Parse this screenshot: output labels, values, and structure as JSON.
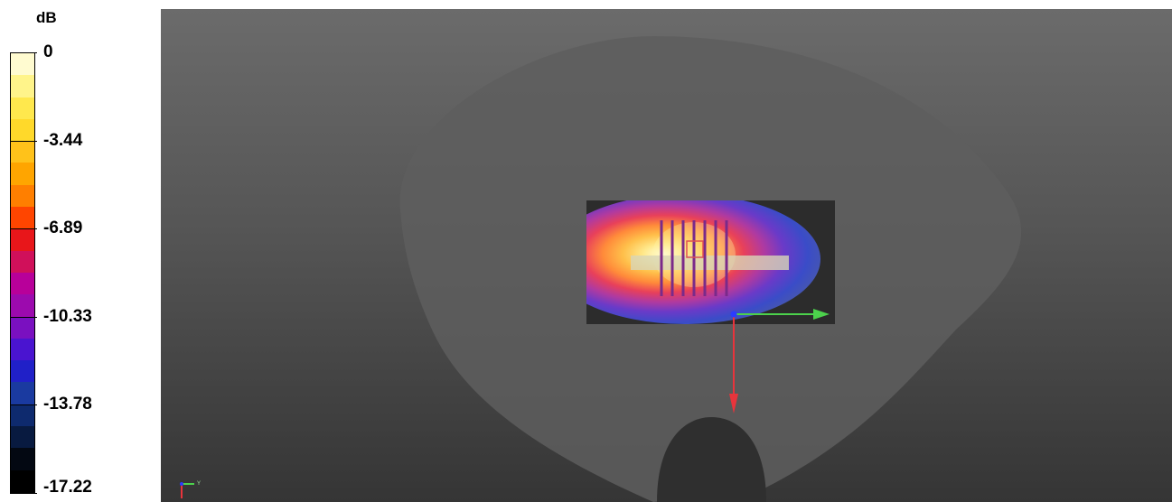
{
  "legend": {
    "unit": "dB",
    "ticks": [
      "0",
      "-3.44",
      "-6.89",
      "-10.33",
      "-13.78",
      "-17.22"
    ],
    "colors": [
      "#fffbd0",
      "#fff48a",
      "#ffe84d",
      "#ffd92a",
      "#ffc21a",
      "#ffa500",
      "#ff7f00",
      "#ff4500",
      "#e8161a",
      "#d0105a",
      "#b8009a",
      "#9c0aae",
      "#7a10c0",
      "#4a14d0",
      "#2020c8",
      "#1a3aa0",
      "#0e2a6e",
      "#081a40",
      "#030812",
      "#000000"
    ]
  },
  "viewport": {
    "background_top": "#6b6b6b",
    "background_bottom": "#353535",
    "phantom_color": "#5e5e5e",
    "axis_x_color": "#4cd24c",
    "axis_z_color": "#e8343c",
    "axis_y_color": "#2b3cff",
    "mini_axis_label": "Y"
  }
}
